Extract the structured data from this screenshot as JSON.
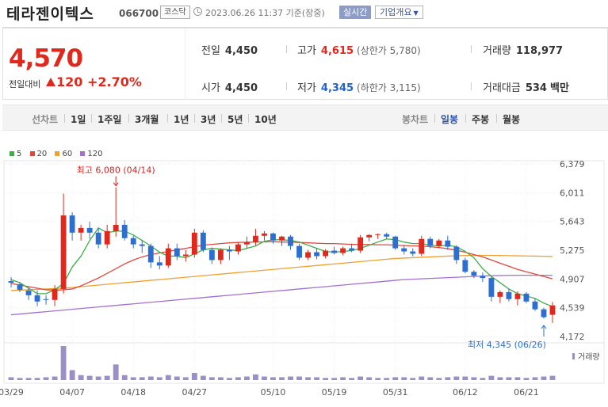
{
  "header": {
    "name": "테라젠이텍스",
    "code": "066700",
    "market": "코스닥",
    "timestamp": "2023.06.26 11:37 기준(장중)",
    "realtime_label": "실시간",
    "company_label": "기업개요"
  },
  "quote": {
    "price": "4,570",
    "change_label": "전일대비",
    "change": "120",
    "change_pct": "+2.70%",
    "prev_close_label": "전일",
    "prev_close": "4,450",
    "high_label": "고가",
    "high": "4,615",
    "upper_limit": "(상한가 5,780)",
    "volume_label": "거래량",
    "volume": "118,977",
    "open_label": "시가",
    "open": "4,450",
    "low_label": "저가",
    "low": "4,345",
    "lower_limit": "(하한가 3,115)",
    "amount_label": "거래대금",
    "amount": "534",
    "amount_unit": "백만"
  },
  "periods": {
    "line_chart": "선차트",
    "items": [
      "1일",
      "1주일",
      "3개월",
      "1년",
      "3년",
      "5년",
      "10년"
    ],
    "candle_chart": "봉차트",
    "candle_items": [
      "일봉",
      "주봉",
      "월봉"
    ],
    "active_candle": "일봉"
  },
  "colors": {
    "up": "#e0291c",
    "down": "#2c6fd1",
    "ma5": "#3fae49",
    "ma20": "#e0483e",
    "ma60": "#f0a030",
    "ma120": "#a56fd0"
  },
  "chart_data": {
    "type": "candlestick",
    "title": "",
    "y_ticks": [
      "6,379",
      "6,011",
      "5,643",
      "5,275",
      "4,907",
      "4,539",
      "4,172"
    ],
    "ylim": [
      4172,
      6379
    ],
    "x_ticks": [
      "03/29",
      "04/07",
      "04/18",
      "04/27",
      "05/10",
      "05/19",
      "05/31",
      "06/12",
      "06/21"
    ],
    "x_tick_index": [
      0,
      7,
      14,
      21,
      30,
      37,
      44,
      52,
      59
    ],
    "legend": [
      "5",
      "20",
      "60",
      "120"
    ],
    "volume_label": "거래량",
    "max_annotation": "최고 6,080 (04/14)",
    "max_index": 12,
    "max_value": 6080,
    "min_annotation": "최저 4,345 (06/26)",
    "min_index": 61,
    "min_value": 4345,
    "candles": [
      [
        4880,
        4930,
        4800,
        4860
      ],
      [
        4840,
        4870,
        4740,
        4770
      ],
      [
        4760,
        4800,
        4640,
        4700
      ],
      [
        4700,
        4760,
        4560,
        4620
      ],
      [
        4650,
        4700,
        4580,
        4640
      ],
      [
        4640,
        4830,
        4560,
        4780
      ],
      [
        4780,
        6000,
        4720,
        5720
      ],
      [
        5720,
        5760,
        5400,
        5500
      ],
      [
        5500,
        5600,
        5400,
        5560
      ],
      [
        5560,
        5640,
        5420,
        5500
      ],
      [
        5500,
        5560,
        5300,
        5350
      ],
      [
        5350,
        5600,
        5300,
        5520
      ],
      [
        5520,
        6080,
        5450,
        5600
      ],
      [
        5600,
        5660,
        5400,
        5430
      ],
      [
        5430,
        5460,
        5300,
        5350
      ],
      [
        5350,
        5400,
        5240,
        5330
      ],
      [
        5330,
        5360,
        5050,
        5120
      ],
      [
        5120,
        5200,
        5030,
        5080
      ],
      [
        5080,
        5360,
        5050,
        5300
      ],
      [
        5300,
        5360,
        5150,
        5200
      ],
      [
        5200,
        5280,
        5130,
        5220
      ],
      [
        5220,
        5550,
        5180,
        5500
      ],
      [
        5500,
        5530,
        5250,
        5280
      ],
      [
        5280,
        5310,
        5100,
        5150
      ],
      [
        5150,
        5300,
        5100,
        5280
      ],
      [
        5280,
        5330,
        5150,
        5260
      ],
      [
        5260,
        5380,
        5220,
        5350
      ],
      [
        5350,
        5450,
        5300,
        5380
      ],
      [
        5380,
        5550,
        5340,
        5460
      ],
      [
        5460,
        5520,
        5400,
        5490
      ],
      [
        5490,
        5500,
        5360,
        5400
      ],
      [
        5400,
        5460,
        5330,
        5450
      ],
      [
        5450,
        5470,
        5280,
        5330
      ],
      [
        5330,
        5360,
        5150,
        5180
      ],
      [
        5180,
        5280,
        5150,
        5250
      ],
      [
        5250,
        5300,
        5160,
        5200
      ],
      [
        5200,
        5290,
        5170,
        5270
      ],
      [
        5270,
        5320,
        5220,
        5240
      ],
      [
        5240,
        5320,
        5210,
        5300
      ],
      [
        5300,
        5360,
        5250,
        5270
      ],
      [
        5270,
        5470,
        5240,
        5440
      ],
      [
        5440,
        5480,
        5390,
        5470
      ],
      [
        5470,
        5490,
        5420,
        5480
      ],
      [
        5480,
        5500,
        5420,
        5450
      ],
      [
        5450,
        5460,
        5280,
        5300
      ],
      [
        5300,
        5340,
        5220,
        5260
      ],
      [
        5260,
        5300,
        5200,
        5230
      ],
      [
        5230,
        5460,
        5200,
        5420
      ],
      [
        5420,
        5450,
        5300,
        5330
      ],
      [
        5330,
        5420,
        5300,
        5400
      ],
      [
        5400,
        5460,
        5280,
        5320
      ],
      [
        5320,
        5340,
        5100,
        5150
      ],
      [
        5150,
        5180,
        4980,
        5000
      ],
      [
        5000,
        5020,
        4920,
        4950
      ],
      [
        4950,
        4990,
        4870,
        4920
      ],
      [
        4920,
        4940,
        4620,
        4680
      ],
      [
        4680,
        4760,
        4600,
        4740
      ],
      [
        4740,
        4780,
        4620,
        4650
      ],
      [
        4650,
        4750,
        4570,
        4720
      ],
      [
        4720,
        4740,
        4600,
        4620
      ],
      [
        4620,
        4660,
        4500,
        4520
      ],
      [
        4520,
        4540,
        4400,
        4420
      ],
      [
        4450,
        4615,
        4345,
        4570
      ]
    ],
    "volume": [
      4,
      3,
      3,
      3,
      4,
      5,
      48,
      14,
      7,
      6,
      5,
      6,
      22,
      7,
      4,
      4,
      5,
      4,
      7,
      5,
      4,
      10,
      6,
      4,
      4,
      3,
      4,
      5,
      8,
      5,
      4,
      4,
      5,
      5,
      4,
      4,
      3,
      3,
      4,
      3,
      5,
      4,
      3,
      3,
      4,
      4,
      3,
      5,
      4,
      3,
      4,
      5,
      5,
      4,
      3,
      6,
      4,
      4,
      4,
      3,
      4,
      5,
      6
    ],
    "ma5": [
      4900,
      4860,
      4790,
      4720,
      4720,
      4770,
      4850,
      5060,
      5200,
      5400,
      5560,
      5500,
      5520,
      5520,
      5470,
      5400,
      5330,
      5250,
      5200,
      5200,
      5180,
      5230,
      5280,
      5300,
      5290,
      5280,
      5270,
      5300,
      5330,
      5390,
      5410,
      5410,
      5400,
      5380,
      5340,
      5300,
      5260,
      5250,
      5260,
      5270,
      5300,
      5340,
      5380,
      5420,
      5410,
      5380,
      5360,
      5360,
      5340,
      5330,
      5340,
      5320,
      5260,
      5180,
      5040,
      4940,
      4860,
      4780,
      4720,
      4690,
      4660,
      4600,
      4555
    ],
    "ma20": [
      4850,
      4830,
      4810,
      4790,
      4770,
      4765,
      4770,
      4780,
      4820,
      4870,
      4920,
      4980,
      5040,
      5100,
      5150,
      5190,
      5220,
      5240,
      5260,
      5280,
      5300,
      5320,
      5340,
      5350,
      5360,
      5370,
      5375,
      5378,
      5380,
      5382,
      5385,
      5380,
      5380,
      5375,
      5370,
      5365,
      5360,
      5360,
      5355,
      5350,
      5350,
      5348,
      5345,
      5345,
      5340,
      5335,
      5330,
      5330,
      5320,
      5310,
      5295,
      5275,
      5250,
      5220,
      5190,
      5150,
      5110,
      5070,
      5030,
      5000,
      4970,
      4940,
      4910
    ],
    "ma60": [
      4760,
      4765,
      4770,
      4775,
      4780,
      4785,
      4790,
      4800,
      4810,
      4820,
      4830,
      4840,
      4850,
      4860,
      4870,
      4880,
      4890,
      4900,
      4910,
      4920,
      4930,
      4940,
      4950,
      4960,
      4970,
      4980,
      4990,
      5000,
      5010,
      5020,
      5030,
      5040,
      5050,
      5060,
      5070,
      5080,
      5090,
      5100,
      5110,
      5120,
      5130,
      5140,
      5150,
      5160,
      5170,
      5175,
      5180,
      5185,
      5190,
      5195,
      5200,
      5205,
      5208,
      5210,
      5210,
      5210,
      5208,
      5206,
      5204,
      5202,
      5200,
      5198,
      5195
    ],
    "ma120": [
      4450,
      4460,
      4470,
      4480,
      4490,
      4500,
      4510,
      4520,
      4530,
      4540,
      4550,
      4560,
      4570,
      4580,
      4590,
      4600,
      4610,
      4620,
      4630,
      4640,
      4650,
      4660,
      4670,
      4680,
      4690,
      4700,
      4710,
      4720,
      4730,
      4740,
      4750,
      4760,
      4770,
      4780,
      4790,
      4800,
      4810,
      4820,
      4830,
      4840,
      4850,
      4860,
      4870,
      4880,
      4890,
      4900,
      4905,
      4910,
      4915,
      4920,
      4925,
      4930,
      4935,
      4940,
      4945,
      4950,
      4952,
      4954,
      4955,
      4955,
      4955,
      4955,
      4955
    ]
  }
}
